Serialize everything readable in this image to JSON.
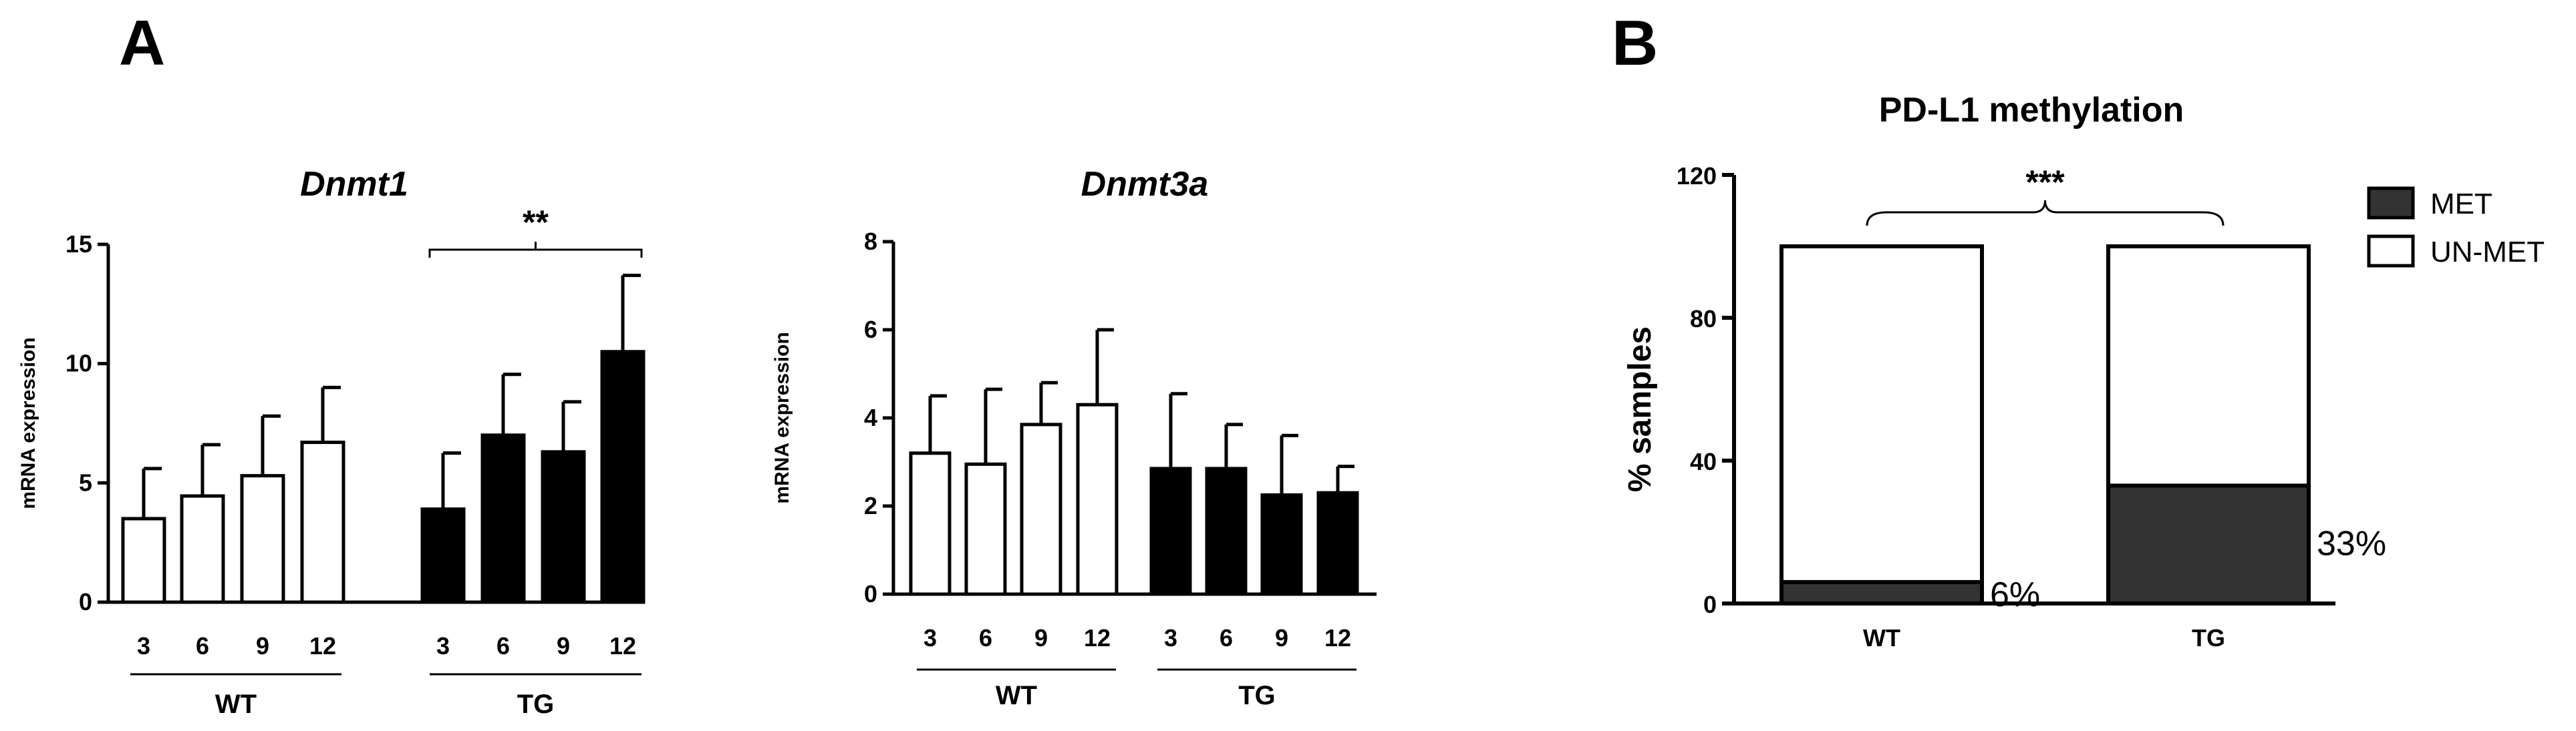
{
  "panels": {
    "a_label": "A",
    "b_label": "B"
  },
  "chart_data": [
    {
      "id": "dnmt1",
      "type": "bar",
      "title": "Dnmt1",
      "ylabel": "mRNA expression",
      "ylim": [
        0,
        15
      ],
      "yticks": [
        0,
        5,
        10,
        15
      ],
      "groups": [
        {
          "name": "WT",
          "fill": "white",
          "categories": [
            "3",
            "6",
            "9",
            "12"
          ],
          "values": [
            3.5,
            4.45,
            5.3,
            6.7
          ],
          "errors": [
            2.1,
            2.15,
            2.5,
            2.3
          ]
        },
        {
          "name": "TG",
          "fill": "black",
          "categories": [
            "3",
            "6",
            "9",
            "12"
          ],
          "values": [
            3.9,
            7.0,
            6.3,
            10.5
          ],
          "errors": [
            2.35,
            2.55,
            2.1,
            3.2
          ]
        }
      ],
      "significance": {
        "label": "**",
        "group": "TG"
      }
    },
    {
      "id": "dnmt3a",
      "type": "bar",
      "title": "Dnmt3a",
      "ylabel": "mRNA expression",
      "ylim": [
        0,
        8
      ],
      "yticks": [
        0,
        2,
        4,
        6,
        8
      ],
      "groups": [
        {
          "name": "WT",
          "fill": "white",
          "categories": [
            "3",
            "6",
            "9",
            "12"
          ],
          "values": [
            3.2,
            2.95,
            3.85,
            4.3
          ],
          "errors": [
            1.3,
            1.7,
            0.95,
            1.7
          ]
        },
        {
          "name": "TG",
          "fill": "black",
          "categories": [
            "3",
            "6",
            "9",
            "12"
          ],
          "values": [
            2.85,
            2.85,
            2.25,
            2.3
          ],
          "errors": [
            1.7,
            1.0,
            1.35,
            0.6
          ]
        }
      ]
    },
    {
      "id": "pdl1",
      "type": "bar",
      "stacked": true,
      "title": "PD-L1 methylation",
      "ylabel": "% samples",
      "ylim": [
        0,
        120
      ],
      "yticks": [
        0,
        40,
        80,
        120
      ],
      "categories": [
        "WT",
        "TG"
      ],
      "series": [
        {
          "name": "MET",
          "color": "#333333",
          "values": [
            6,
            33
          ]
        },
        {
          "name": "UN-MET",
          "color": "#ffffff",
          "values": [
            94,
            67
          ]
        }
      ],
      "annotations": [
        "6%",
        "33%"
      ],
      "significance": {
        "label": "***"
      },
      "legend_position": "top-right"
    }
  ]
}
